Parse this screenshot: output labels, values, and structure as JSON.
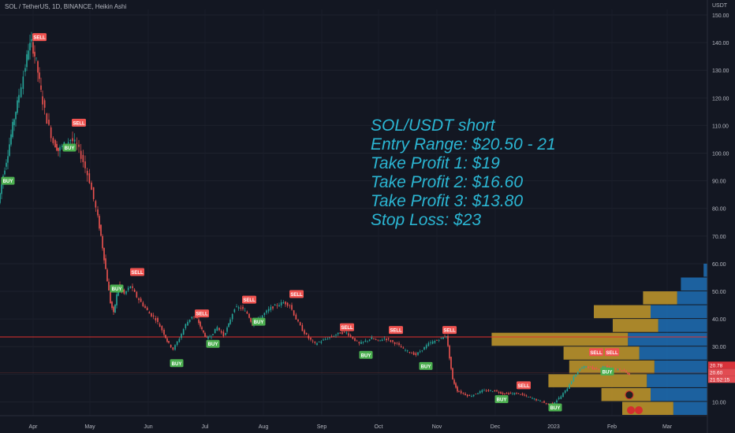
{
  "header": {
    "symbol_line": "SOL / TetherUS, 1D, BINANCE, Heikin Ashi"
  },
  "axis": {
    "unit": "USDT"
  },
  "annotation": {
    "lines": [
      "SOL/USDT short",
      "Entry Range: $20.50 - 21",
      "Take Profit 1: $19",
      "Take Profit 2: $16.60",
      "Take Profit 3: $13.80",
      "Stop Loss: $23"
    ]
  },
  "price_tags": [
    "20.78",
    "20.60",
    "21:52:15"
  ],
  "colors": {
    "bg": "#131722",
    "up": "#26a69a",
    "down": "#ef5350",
    "annotation": "#2bb6d3",
    "buy": "#4caf50",
    "sell": "#ef5350",
    "profile_blue": "#1f6fb5",
    "profile_gold": "#c49a2c"
  },
  "chart_data": {
    "type": "candlestick",
    "ylim": [
      5,
      152
    ],
    "y_ticks": [
      "10.00",
      "20.00",
      "30.00",
      "40.00",
      "50.00",
      "60.00",
      "70.00",
      "80.00",
      "90.00",
      "100.00",
      "110.00",
      "120.00",
      "130.00",
      "140.00",
      "150.00"
    ],
    "x_ticks": [
      "Apr",
      "May",
      "Jun",
      "Jul",
      "Aug",
      "Sep",
      "Oct",
      "Nov",
      "Dec",
      "2023",
      "Feb",
      "Mar"
    ],
    "horizontal_line": 33.5,
    "price_path": [
      {
        "x": 0,
        "y": 82
      },
      {
        "x": 6,
        "y": 92
      },
      {
        "x": 12,
        "y": 100
      },
      {
        "x": 18,
        "y": 110
      },
      {
        "x": 24,
        "y": 118
      },
      {
        "x": 32,
        "y": 128
      },
      {
        "x": 38,
        "y": 138
      },
      {
        "x": 42,
        "y": 140
      },
      {
        "x": 48,
        "y": 133
      },
      {
        "x": 54,
        "y": 122
      },
      {
        "x": 62,
        "y": 112
      },
      {
        "x": 70,
        "y": 104
      },
      {
        "x": 76,
        "y": 101
      },
      {
        "x": 84,
        "y": 103
      },
      {
        "x": 92,
        "y": 105
      },
      {
        "x": 100,
        "y": 103
      },
      {
        "x": 108,
        "y": 97
      },
      {
        "x": 116,
        "y": 90
      },
      {
        "x": 124,
        "y": 80
      },
      {
        "x": 130,
        "y": 70
      },
      {
        "x": 136,
        "y": 58
      },
      {
        "x": 142,
        "y": 46
      },
      {
        "x": 146,
        "y": 42
      },
      {
        "x": 152,
        "y": 52
      },
      {
        "x": 160,
        "y": 49
      },
      {
        "x": 168,
        "y": 52
      },
      {
        "x": 176,
        "y": 48
      },
      {
        "x": 184,
        "y": 45
      },
      {
        "x": 192,
        "y": 42
      },
      {
        "x": 200,
        "y": 40
      },
      {
        "x": 208,
        "y": 36
      },
      {
        "x": 214,
        "y": 32
      },
      {
        "x": 222,
        "y": 29
      },
      {
        "x": 230,
        "y": 33
      },
      {
        "x": 238,
        "y": 38
      },
      {
        "x": 246,
        "y": 41
      },
      {
        "x": 252,
        "y": 40
      },
      {
        "x": 258,
        "y": 36
      },
      {
        "x": 264,
        "y": 33
      },
      {
        "x": 270,
        "y": 34
      },
      {
        "x": 278,
        "y": 37
      },
      {
        "x": 286,
        "y": 34
      },
      {
        "x": 292,
        "y": 38
      },
      {
        "x": 300,
        "y": 44
      },
      {
        "x": 308,
        "y": 44
      },
      {
        "x": 316,
        "y": 42
      },
      {
        "x": 322,
        "y": 38
      },
      {
        "x": 330,
        "y": 40
      },
      {
        "x": 338,
        "y": 42
      },
      {
        "x": 346,
        "y": 44
      },
      {
        "x": 354,
        "y": 45
      },
      {
        "x": 362,
        "y": 46
      },
      {
        "x": 370,
        "y": 45
      },
      {
        "x": 378,
        "y": 40
      },
      {
        "x": 386,
        "y": 36
      },
      {
        "x": 394,
        "y": 33
      },
      {
        "x": 402,
        "y": 31
      },
      {
        "x": 410,
        "y": 32
      },
      {
        "x": 418,
        "y": 33
      },
      {
        "x": 426,
        "y": 34
      },
      {
        "x": 434,
        "y": 35
      },
      {
        "x": 442,
        "y": 35
      },
      {
        "x": 450,
        "y": 33
      },
      {
        "x": 458,
        "y": 31
      },
      {
        "x": 466,
        "y": 32
      },
      {
        "x": 474,
        "y": 33
      },
      {
        "x": 482,
        "y": 32
      },
      {
        "x": 490,
        "y": 33
      },
      {
        "x": 498,
        "y": 32
      },
      {
        "x": 506,
        "y": 31
      },
      {
        "x": 514,
        "y": 29
      },
      {
        "x": 522,
        "y": 28
      },
      {
        "x": 530,
        "y": 27
      },
      {
        "x": 538,
        "y": 29
      },
      {
        "x": 546,
        "y": 31
      },
      {
        "x": 554,
        "y": 32
      },
      {
        "x": 562,
        "y": 33
      },
      {
        "x": 568,
        "y": 34
      },
      {
        "x": 572,
        "y": 26
      },
      {
        "x": 576,
        "y": 18
      },
      {
        "x": 582,
        "y": 14
      },
      {
        "x": 590,
        "y": 13
      },
      {
        "x": 598,
        "y": 12
      },
      {
        "x": 606,
        "y": 13
      },
      {
        "x": 614,
        "y": 14
      },
      {
        "x": 622,
        "y": 14
      },
      {
        "x": 630,
        "y": 14
      },
      {
        "x": 640,
        "y": 13
      },
      {
        "x": 650,
        "y": 13
      },
      {
        "x": 660,
        "y": 13
      },
      {
        "x": 670,
        "y": 12
      },
      {
        "x": 680,
        "y": 11
      },
      {
        "x": 690,
        "y": 10
      },
      {
        "x": 698,
        "y": 9
      },
      {
        "x": 706,
        "y": 10
      },
      {
        "x": 714,
        "y": 12
      },
      {
        "x": 722,
        "y": 15
      },
      {
        "x": 730,
        "y": 19
      },
      {
        "x": 738,
        "y": 22
      },
      {
        "x": 746,
        "y": 23
      },
      {
        "x": 754,
        "y": 22
      },
      {
        "x": 762,
        "y": 22
      },
      {
        "x": 770,
        "y": 23
      },
      {
        "x": 778,
        "y": 22
      },
      {
        "x": 786,
        "y": 22
      },
      {
        "x": 794,
        "y": 21
      },
      {
        "x": 800,
        "y": 20
      }
    ],
    "signals": [
      {
        "label": "BUY",
        "x": 10,
        "y": 90
      },
      {
        "label": "SELL",
        "x": 50,
        "y": 142
      },
      {
        "label": "SELL",
        "x": 100,
        "y": 111
      },
      {
        "label": "BUY",
        "x": 88,
        "y": 102
      },
      {
        "label": "BUY",
        "x": 148,
        "y": 51
      },
      {
        "label": "SELL",
        "x": 174,
        "y": 57
      },
      {
        "label": "BUY",
        "x": 224,
        "y": 24
      },
      {
        "label": "SELL",
        "x": 256,
        "y": 42
      },
      {
        "label": "BUY",
        "x": 270,
        "y": 31
      },
      {
        "label": "SELL",
        "x": 316,
        "y": 47
      },
      {
        "label": "BUY",
        "x": 328,
        "y": 39
      },
      {
        "label": "SELL",
        "x": 376,
        "y": 49
      },
      {
        "label": "SELL",
        "x": 440,
        "y": 37
      },
      {
        "label": "BUY",
        "x": 464,
        "y": 27
      },
      {
        "label": "SELL",
        "x": 502,
        "y": 36
      },
      {
        "label": "BUY",
        "x": 540,
        "y": 23
      },
      {
        "label": "SELL",
        "x": 570,
        "y": 36
      },
      {
        "label": "SELL",
        "x": 664,
        "y": 16
      },
      {
        "label": "BUY",
        "x": 636,
        "y": 11
      },
      {
        "label": "BUY",
        "x": 704,
        "y": 8
      },
      {
        "label": "SELL",
        "x": 756,
        "y": 28
      },
      {
        "label": "SELL",
        "x": 776,
        "y": 28
      },
      {
        "label": "BUY",
        "x": 770,
        "y": 21
      }
    ],
    "volume_profile": [
      {
        "low": 5,
        "high": 10,
        "blue": 0.18,
        "gold": 0.27
      },
      {
        "low": 10,
        "high": 15,
        "blue": 0.3,
        "gold": 0.26
      },
      {
        "low": 15,
        "high": 20,
        "blue": 0.32,
        "gold": 0.52
      },
      {
        "low": 20,
        "high": 25,
        "blue": 0.28,
        "gold": 0.45
      },
      {
        "low": 25,
        "high": 30,
        "blue": 0.36,
        "gold": 0.4
      },
      {
        "low": 30,
        "high": 35,
        "blue": 0.42,
        "gold": 0.72
      },
      {
        "low": 35,
        "high": 40,
        "blue": 0.26,
        "gold": 0.24
      },
      {
        "low": 40,
        "high": 45,
        "blue": 0.3,
        "gold": 0.3
      },
      {
        "low": 45,
        "high": 50,
        "blue": 0.16,
        "gold": 0.18
      },
      {
        "low": 50,
        "high": 55,
        "blue": 0.14,
        "gold": 0.0
      },
      {
        "low": 55,
        "high": 60,
        "blue": 0.02,
        "gold": 0.0
      }
    ]
  }
}
